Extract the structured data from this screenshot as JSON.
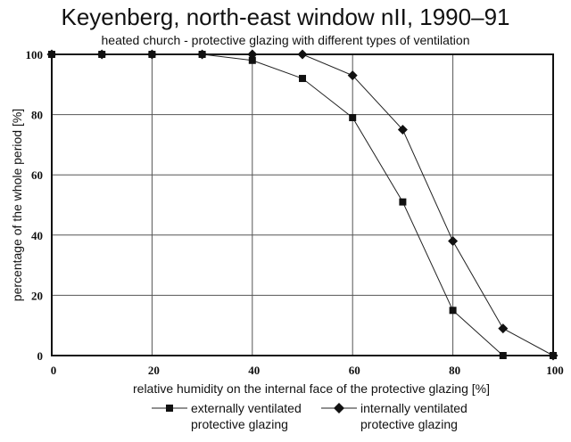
{
  "chart_data": {
    "type": "line",
    "title": "Keyenberg, north-east window nII, 1990–91",
    "subtitle": "heated church - protective glazing with different types of ventilation",
    "xlabel": "relative humidity on the internal face of the protective glazing [%]",
    "ylabel": "percentage of the whole period [%]",
    "xlim": [
      0,
      100
    ],
    "ylim": [
      0,
      100
    ],
    "xticks": [
      0,
      20,
      40,
      60,
      80,
      100
    ],
    "yticks": [
      0,
      20,
      40,
      60,
      80,
      100
    ],
    "grid": true,
    "legend_position": "bottom",
    "series": [
      {
        "name": "externally ventilated protective glazing",
        "marker": "square",
        "x": [
          0,
          10,
          20,
          30,
          40,
          50,
          60,
          70,
          80,
          90,
          100
        ],
        "values": [
          100,
          100,
          100,
          100,
          98,
          92,
          79,
          51,
          15,
          0,
          0
        ]
      },
      {
        "name": "internally ventilated protective glazing",
        "marker": "diamond",
        "x": [
          0,
          10,
          20,
          30,
          40,
          50,
          60,
          70,
          80,
          90,
          100
        ],
        "values": [
          100,
          100,
          100,
          100,
          100,
          100,
          93,
          75,
          38,
          9,
          0
        ]
      }
    ]
  },
  "legend": {
    "items": [
      {
        "line1": "externally ventilated",
        "line2": "protective glazing"
      },
      {
        "line1": "internally ventilated",
        "line2": "protective glazing"
      }
    ]
  }
}
